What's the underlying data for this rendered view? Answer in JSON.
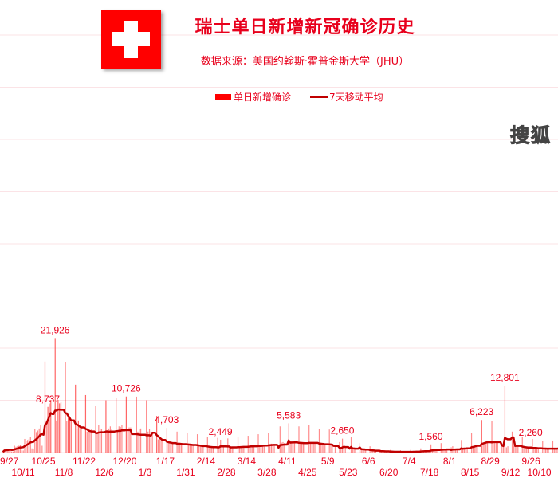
{
  "header": {
    "title": "瑞士单日新增新冠确诊历史",
    "subtitle": "数据来源：美国约翰斯·霍普金斯大学（JHU）",
    "flag_icon": "swiss-flag-icon"
  },
  "watermark": "搜狐",
  "colors": {
    "bar": "#ff6666",
    "line": "#c00000",
    "text": "#e8001c",
    "grid": "#fbe3e6"
  },
  "chart_data": {
    "type": "bar",
    "title": "瑞士单日新增新冠确诊历史",
    "ylim": [
      0,
      80000
    ],
    "grid": true,
    "legend_position": "top",
    "series": [
      {
        "name": "单日新增确诊",
        "kind": "bar"
      },
      {
        "name": "7天移动平均",
        "kind": "line"
      }
    ],
    "x_ticks": [
      "9/27",
      "10/11",
      "10/25",
      "11/8",
      "11/22",
      "12/6",
      "12/20",
      "1/3",
      "1/17",
      "1/31",
      "2/14",
      "2/28",
      "3/14",
      "3/28",
      "4/11",
      "4/25",
      "5/9",
      "5/23",
      "6/6",
      "6/20",
      "7/4",
      "7/18",
      "8/1",
      "8/15",
      "8/29",
      "9/12",
      "9/26",
      "10/10"
    ],
    "weeks": [
      {
        "week_of": "9/27",
        "values": [
          100,
          650,
          550,
          600,
          650,
          750,
          200
        ]
      },
      {
        "week_of": "10/4",
        "values": [
          200,
          1300,
          1100,
          1200,
          1300,
          1500,
          400
        ]
      },
      {
        "week_of": "10/11",
        "values": [
          400,
          2600,
          2200,
          2400,
          2600,
          3000,
          800
        ]
      },
      {
        "week_of": "10/18",
        "values": [
          700,
          4500,
          3900,
          4200,
          4600,
          5300,
          1300
        ]
      },
      {
        "week_of": "10/25",
        "values": [
          0,
          17440,
          5949,
          8737,
          9386,
          10073,
          0
        ]
      },
      {
        "week_of": "11/1",
        "values": [
          0,
          21926,
          6126,
          10073,
          9409,
          9751,
          0
        ]
      },
      {
        "week_of": "11/8",
        "values": [
          0,
          17309,
          5980,
          6924,
          6739,
          6114,
          0
        ]
      },
      {
        "week_of": "11/15",
        "values": [
          0,
          13000,
          4560,
          6126,
          4946,
          5000,
          0
        ]
      },
      {
        "week_of": "11/22",
        "values": [
          0,
          11000,
          4000,
          4500,
          4300,
          4400,
          0
        ]
      },
      {
        "week_of": "11/29",
        "values": [
          0,
          9000,
          3800,
          5200,
          4600,
          4500,
          0
        ]
      },
      {
        "week_of": "12/6",
        "values": [
          0,
          10000,
          4000,
          4600,
          5000,
          4500,
          0
        ]
      },
      {
        "week_of": "12/13",
        "values": [
          0,
          10400,
          4200,
          5000,
          4900,
          5200,
          0
        ]
      },
      {
        "week_of": "12/20",
        "values": [
          0,
          10726,
          4400,
          4800,
          4800,
          0,
          0
        ]
      },
      {
        "week_of": "12/27",
        "values": [
          0,
          10700,
          4000,
          4500,
          4600,
          0,
          0
        ]
      },
      {
        "week_of": "1/3",
        "values": [
          0,
          10000,
          4000,
          4500,
          4000,
          3900,
          0
        ]
      },
      {
        "week_of": "1/10",
        "values": [
          0,
          7000,
          2500,
          2600,
          2400,
          2300,
          0
        ]
      },
      {
        "week_of": "1/17",
        "values": [
          0,
          4703,
          2000,
          2100,
          2000,
          1900,
          0
        ]
      },
      {
        "week_of": "1/24",
        "values": [
          0,
          4000,
          1800,
          1900,
          1800,
          1700,
          0
        ]
      },
      {
        "week_of": "1/31",
        "values": [
          0,
          3800,
          1600,
          1700,
          1600,
          1500,
          0
        ]
      },
      {
        "week_of": "2/7",
        "values": [
          0,
          3500,
          1300,
          1400,
          1300,
          1200,
          0
        ]
      },
      {
        "week_of": "2/14",
        "values": [
          0,
          3000,
          1000,
          1100,
          1100,
          1000,
          0
        ]
      },
      {
        "week_of": "2/21",
        "values": [
          0,
          2800,
          1000,
          2449,
          1000,
          1000,
          0
        ]
      },
      {
        "week_of": "2/28",
        "values": [
          0,
          2700,
          1000,
          1100,
          1100,
          1000,
          0
        ]
      },
      {
        "week_of": "3/7",
        "values": [
          0,
          3000,
          1100,
          1200,
          1200,
          1100,
          0
        ]
      },
      {
        "week_of": "3/14",
        "values": [
          0,
          3200,
          1300,
          1400,
          1300,
          1200,
          0
        ]
      },
      {
        "week_of": "3/21",
        "values": [
          0,
          3500,
          1400,
          1500,
          1500,
          1400,
          0
        ]
      },
      {
        "week_of": "3/28",
        "values": [
          0,
          3800,
          1600,
          1700,
          1700,
          1500,
          0
        ]
      },
      {
        "week_of": "4/4",
        "values": [
          0,
          0,
          5000,
          1900,
          2000,
          1800,
          0
        ]
      },
      {
        "week_of": "4/11",
        "values": [
          0,
          5583,
          2000,
          2100,
          2000,
          1900,
          0
        ]
      },
      {
        "week_of": "4/18",
        "values": [
          0,
          5000,
          1900,
          2000,
          1900,
          1800,
          0
        ]
      },
      {
        "week_of": "4/25",
        "values": [
          0,
          5300,
          1900,
          2000,
          1900,
          1800,
          0
        ]
      },
      {
        "week_of": "5/2",
        "values": [
          0,
          4500,
          1700,
          1800,
          1600,
          1500,
          0
        ]
      },
      {
        "week_of": "5/9",
        "values": [
          0,
          4400,
          1500,
          1600,
          0,
          1400,
          0
        ]
      },
      {
        "week_of": "5/16",
        "values": [
          0,
          2000,
          800,
          2650,
          1000,
          900,
          0
        ]
      },
      {
        "week_of": "5/23",
        "values": [
          0,
          0,
          3000,
          800,
          700,
          700,
          0
        ]
      },
      {
        "week_of": "5/30",
        "values": [
          0,
          1800,
          600,
          600,
          550,
          500,
          0
        ]
      },
      {
        "week_of": "6/6",
        "values": [
          0,
          1200,
          400,
          350,
          300,
          300,
          0
        ]
      },
      {
        "week_of": "6/13",
        "values": [
          0,
          700,
          250,
          220,
          200,
          180,
          0
        ]
      },
      {
        "week_of": "6/20",
        "values": [
          0,
          500,
          150,
          140,
          130,
          120,
          0
        ]
      },
      {
        "week_of": "6/27",
        "values": [
          0,
          450,
          130,
          120,
          120,
          110,
          0
        ]
      },
      {
        "week_of": "7/4",
        "values": [
          0,
          500,
          150,
          160,
          170,
          180,
          0
        ]
      },
      {
        "week_of": "7/11",
        "values": [
          0,
          800,
          250,
          280,
          300,
          320,
          0
        ]
      },
      {
        "week_of": "7/18",
        "values": [
          0,
          1560,
          450,
          480,
          500,
          520,
          0
        ]
      },
      {
        "week_of": "7/25",
        "values": [
          0,
          1800,
          550,
          600,
          620,
          640,
          0
        ]
      },
      {
        "week_of": "8/1",
        "values": [
          0,
          1000,
          1200,
          650,
          680,
          700,
          0
        ]
      },
      {
        "week_of": "8/8",
        "values": [
          0,
          2400,
          750,
          800,
          850,
          900,
          0
        ]
      },
      {
        "week_of": "8/15",
        "values": [
          0,
          3800,
          1100,
          1300,
          1400,
          1500,
          0
        ]
      },
      {
        "week_of": "8/22",
        "values": [
          0,
          6223,
          1700,
          1900,
          2000,
          2100,
          0
        ]
      },
      {
        "week_of": "8/29",
        "values": [
          0,
          6000,
          1900,
          2000,
          2100,
          2000,
          0
        ]
      },
      {
        "week_of": "9/5",
        "values": [
          0,
          1500,
          1200,
          12801,
          1000,
          1200,
          0
        ]
      },
      {
        "week_of": "9/12",
        "values": [
          0,
          4000,
          1300,
          1400,
          1200,
          1100,
          0
        ]
      },
      {
        "week_of": "9/19",
        "values": [
          0,
          3000,
          900,
          1000,
          950,
          900,
          0
        ]
      },
      {
        "week_of": "9/26",
        "values": [
          0,
          2600,
          800,
          850,
          800,
          750,
          0
        ]
      },
      {
        "week_of": "10/3",
        "values": [
          0,
          2260,
          700,
          800,
          750,
          700,
          0
        ]
      },
      {
        "week_of": "10/10",
        "values": [
          0,
          2300,
          700,
          750,
          800,
          750
        ]
      }
    ],
    "annotations": [
      {
        "label": "8,737",
        "value": 8737
      },
      {
        "label": "21,926",
        "value": 21926
      },
      {
        "label": "10,726",
        "value": 10726
      },
      {
        "label": "4,703",
        "value": 4703
      },
      {
        "label": "2,449",
        "value": 2449
      },
      {
        "label": "5,583",
        "value": 5583
      },
      {
        "label": "2,650",
        "value": 2650
      },
      {
        "label": "1,560",
        "value": 1560
      },
      {
        "label": "6,223",
        "value": 6223
      },
      {
        "label": "12,801",
        "value": 12801
      },
      {
        "label": "2,260",
        "value": 2260
      }
    ]
  }
}
